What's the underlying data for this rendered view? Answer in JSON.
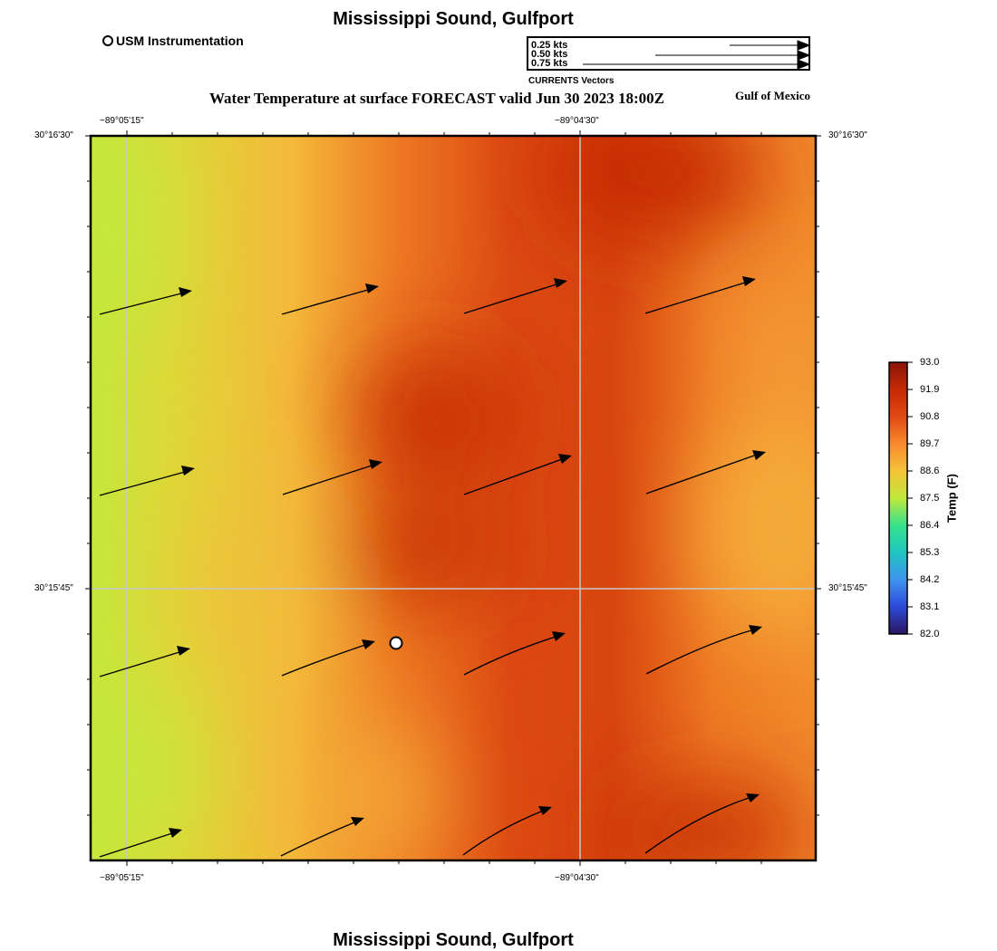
{
  "header": {
    "title": "Mississippi Sound, Gulfport",
    "instrument_legend": "USM Instrumentation",
    "subtitle": "Water Temperature at surface FORECAST valid Jun 30 2023 18:00Z",
    "region": "Gulf of Mexico",
    "footer_title": "Mississippi Sound, Gulfport"
  },
  "vector_legend": {
    "title": "CURRENTS Vectors",
    "entries": [
      {
        "label": "0.25 kts",
        "speed": 0.25
      },
      {
        "label": "0.50 kts",
        "speed": 0.5
      },
      {
        "label": "0.75 kts",
        "speed": 0.75
      }
    ]
  },
  "axes": {
    "lon_labels": [
      "−89°05'15\"",
      "−89°04'30\""
    ],
    "lat_labels": [
      "30°16'30\"",
      "30°15'45\""
    ]
  },
  "colorbar": {
    "label": "Temp (F)",
    "ticks": [
      "93.0",
      "91.9",
      "90.8",
      "89.7",
      "88.6",
      "87.5",
      "86.4",
      "85.3",
      "84.2",
      "83.1",
      "82.0"
    ],
    "min": 82.0,
    "max": 93.0,
    "colors": [
      "#2a1660",
      "#2c4ad8",
      "#3f93f0",
      "#1ec6c0",
      "#36e28a",
      "#bfe83c",
      "#f5c238",
      "#f88a2e",
      "#e04a12",
      "#c42a05",
      "#8a1406"
    ]
  },
  "station": {
    "name": "USM Instrumentation"
  }
}
